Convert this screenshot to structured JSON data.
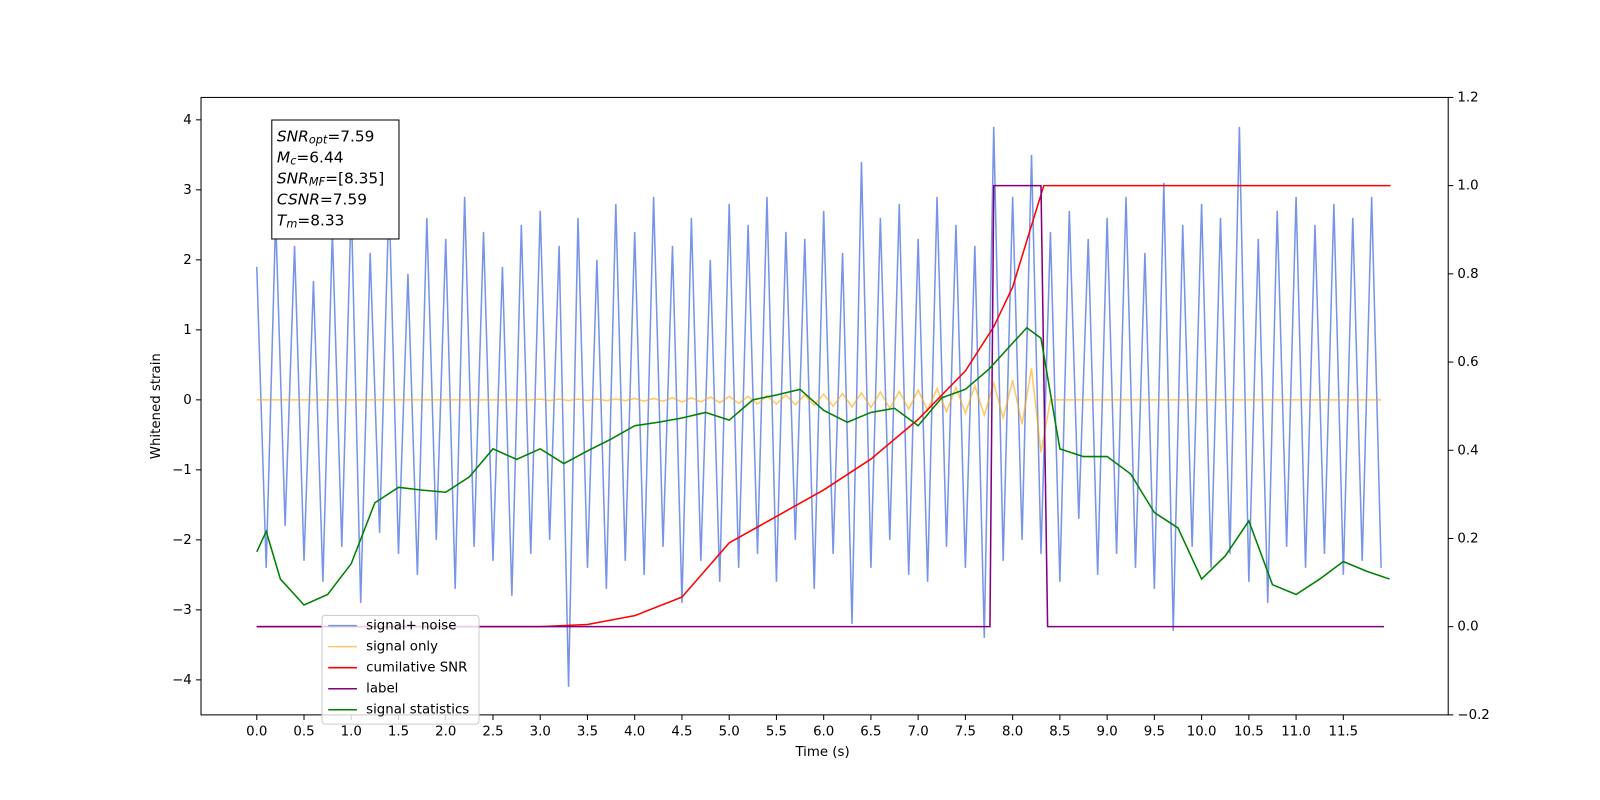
{
  "chart_data": {
    "type": "line",
    "xlabel": "Time (s)",
    "ylabel": "Whitened strain",
    "xlim": [
      -0.59,
      12.61
    ],
    "ylim": [
      -4.5,
      4.32
    ],
    "y2lim": [
      -0.2,
      1.2
    ],
    "xticks": [
      {
        "value": 0,
        "label": "0.0"
      },
      0.5,
      {
        "value": 1,
        "label": "1.0"
      },
      1.5,
      {
        "value": 2,
        "label": "2.0"
      },
      2.5,
      {
        "value": 3,
        "label": "3.0"
      },
      3.5,
      {
        "value": 4,
        "label": "4.0"
      },
      4.5,
      {
        "value": 5,
        "label": "5.0"
      },
      5.5,
      {
        "value": 6,
        "label": "6.0"
      },
      6.5,
      {
        "value": 7,
        "label": "7.0"
      },
      7.5,
      {
        "value": 8,
        "label": "8.0"
      },
      8.5,
      {
        "value": 9,
        "label": "9.0"
      },
      9.5,
      {
        "value": 10,
        "label": "10.0"
      },
      10.5,
      {
        "value": 11,
        "label": "11.0"
      },
      11.5
    ],
    "yticks": [
      {
        "value": -4,
        "label": "−4"
      },
      {
        "value": -3,
        "label": "−3"
      },
      {
        "value": -2,
        "label": "−2"
      },
      {
        "value": -1,
        "label": "−1"
      },
      0,
      1,
      2,
      3,
      4
    ],
    "y2ticks": [
      {
        "value": -0.2,
        "label": "−0.2"
      },
      {
        "value": 0,
        "label": "0.0"
      },
      0.2,
      0.4,
      0.6,
      0.8,
      {
        "value": 1,
        "label": "1.0"
      },
      1.2
    ],
    "legend": "lower left",
    "annotations": [
      {
        "main": "SNR",
        "sub": "opt",
        "rest": "=7.59"
      },
      {
        "main": "M",
        "sub": "c",
        "rest": "=6.44"
      },
      {
        "main": "SNR",
        "sub": "MF",
        "rest": "=[8.35]"
      },
      {
        "main": "CSNR",
        "rest": "=7.59"
      },
      {
        "main": "T",
        "sub": "m",
        "rest": "=8.33"
      }
    ],
    "x": [
      0.0,
      0.1,
      0.2,
      0.3,
      0.4,
      0.5,
      0.6,
      0.7,
      0.8,
      0.9,
      1.0,
      1.1,
      1.2,
      1.3,
      1.4,
      1.5,
      1.6,
      1.7,
      1.8,
      1.9,
      2.0,
      2.1,
      2.2,
      2.3,
      2.4,
      2.5,
      2.6,
      2.7,
      2.8,
      2.9,
      3.0,
      3.1,
      3.2,
      3.3,
      3.4,
      3.5,
      3.6,
      3.7,
      3.8,
      3.9,
      4.0,
      4.1,
      4.2,
      4.3,
      4.4,
      4.5,
      4.6,
      4.7,
      4.8,
      4.9,
      5.0,
      5.1,
      5.2,
      5.3,
      5.4,
      5.5,
      5.6,
      5.7,
      5.8,
      5.9,
      6.0,
      6.1,
      6.2,
      6.3,
      6.4,
      6.5,
      6.6,
      6.7,
      6.8,
      6.9,
      7.0,
      7.1,
      7.2,
      7.3,
      7.4,
      7.5,
      7.6,
      7.7,
      7.8,
      7.9,
      8.0,
      8.1,
      8.2,
      8.3,
      8.4,
      8.5,
      8.6,
      8.7,
      8.8,
      8.9,
      9.0,
      9.1,
      9.2,
      9.3,
      9.4,
      9.5,
      9.6,
      9.7,
      9.8,
      9.9,
      10.0,
      10.1,
      10.2,
      10.3,
      10.4,
      10.5,
      10.6,
      10.7,
      10.8,
      10.9,
      11.0,
      11.1,
      11.2,
      11.3,
      11.4,
      11.5,
      11.6,
      11.7,
      11.8,
      11.9
    ],
    "series": [
      {
        "name": "signal+ noise",
        "color": "#7894e8",
        "values": [
          1.9,
          -2.4,
          2.6,
          -1.8,
          2.2,
          -2.3,
          1.7,
          -2.6,
          2.4,
          -2.1,
          2.8,
          -2.9,
          2.1,
          -1.9,
          2.9,
          -2.2,
          1.8,
          -2.5,
          2.6,
          -2.0,
          2.3,
          -2.7,
          2.9,
          -2.1,
          2.4,
          -2.3,
          1.9,
          -2.8,
          2.5,
          -2.2,
          2.7,
          -2.0,
          2.2,
          -4.1,
          2.6,
          -2.4,
          2.0,
          -2.7,
          2.8,
          -2.3,
          2.4,
          -2.5,
          2.9,
          -2.1,
          2.2,
          -2.9,
          2.6,
          -2.3,
          2.0,
          -2.6,
          2.8,
          -2.4,
          2.5,
          -2.2,
          2.9,
          -2.6,
          2.4,
          -2.0,
          2.3,
          -2.7,
          2.7,
          -2.2,
          2.1,
          -3.2,
          3.4,
          -2.4,
          2.6,
          -2.0,
          2.8,
          -2.5,
          2.3,
          -2.6,
          2.9,
          -2.1,
          2.5,
          -2.4,
          2.2,
          -3.4,
          3.9,
          -2.3,
          2.9,
          -2.0,
          3.5,
          -2.2,
          2.4,
          -2.6,
          2.7,
          -1.7,
          2.3,
          -2.5,
          2.6,
          -2.2,
          2.9,
          -2.4,
          2.1,
          -2.7,
          3.1,
          -3.3,
          2.5,
          -2.1,
          2.8,
          -2.4,
          2.6,
          -2.2,
          3.9,
          -2.6,
          2.3,
          -2.9,
          2.7,
          -2.1,
          2.9,
          -2.4,
          2.5,
          -2.2,
          2.8,
          -2.5,
          2.6,
          -2.3,
          2.9,
          -2.4
        ]
      },
      {
        "name": "signal only",
        "color": "#ffa500",
        "values": [
          0,
          0,
          0,
          0,
          0,
          0,
          0,
          0,
          0,
          0,
          0,
          0,
          0,
          0,
          0,
          0,
          0,
          0,
          0,
          0,
          0,
          0,
          0,
          0,
          0,
          0,
          0,
          0,
          0,
          0,
          0.01,
          -0.01,
          0.01,
          -0.01,
          0.01,
          -0.01,
          0.01,
          -0.01,
          0.01,
          -0.01,
          0.02,
          -0.02,
          0.02,
          -0.02,
          0.03,
          -0.03,
          0.03,
          -0.03,
          0.04,
          -0.04,
          0.05,
          -0.05,
          0.05,
          -0.06,
          0.06,
          -0.06,
          0.07,
          -0.07,
          0.07,
          -0.08,
          0.08,
          -0.09,
          0.09,
          -0.1,
          0.1,
          -0.11,
          0.11,
          -0.12,
          0.12,
          -0.13,
          0.14,
          -0.15,
          0.16,
          -0.17,
          0.18,
          -0.19,
          0.2,
          -0.22,
          0.24,
          -0.26,
          0.28,
          -0.35,
          0.45,
          -0.75,
          0,
          0,
          0,
          0,
          0,
          0,
          0,
          0,
          0,
          0,
          0,
          0,
          0,
          0,
          0,
          0,
          0,
          0,
          0,
          0,
          0,
          0,
          0,
          0,
          0,
          0,
          0,
          0,
          0,
          0,
          0,
          0,
          0,
          0,
          0,
          0
        ]
      },
      {
        "name": "cumilative SNR",
        "color": "#ff0000",
        "axis": "y2",
        "x": [
          0,
          3.0,
          3.5,
          4.0,
          4.5,
          5.0,
          5.5,
          6.0,
          6.5,
          7.0,
          7.5,
          7.8,
          8.0,
          8.2,
          8.33,
          12.0
        ],
        "values": [
          0,
          0,
          0.005,
          0.025,
          0.067,
          0.19,
          0.25,
          0.31,
          0.38,
          0.47,
          0.58,
          0.68,
          0.77,
          0.91,
          1.0,
          1.0
        ]
      },
      {
        "name": "label",
        "color": "#800080",
        "axis": "y2",
        "x": [
          0,
          7.76,
          7.8,
          8.3,
          8.37,
          11.93
        ],
        "values": [
          0,
          0,
          1,
          1,
          0,
          0
        ]
      },
      {
        "name": "signal statistics",
        "color": "#008000",
        "x": [
          0,
          0.1,
          0.25,
          0.5,
          0.75,
          1.0,
          1.25,
          1.5,
          1.75,
          2.0,
          2.25,
          2.5,
          2.75,
          3.0,
          3.25,
          3.5,
          3.75,
          4.0,
          4.25,
          4.5,
          4.75,
          5.0,
          5.25,
          5.5,
          5.75,
          6.0,
          6.25,
          6.5,
          6.75,
          7.0,
          7.25,
          7.5,
          7.75,
          8.0,
          8.15,
          8.3,
          8.5,
          8.75,
          9.0,
          9.25,
          9.5,
          9.75,
          10.0,
          10.25,
          10.5,
          10.75,
          11.0,
          11.25,
          11.5,
          11.75,
          11.99
        ],
        "values": [
          -2.17,
          -1.88,
          -2.56,
          -2.93,
          -2.78,
          -2.34,
          -1.47,
          -1.25,
          -1.29,
          -1.32,
          -1.1,
          -0.7,
          -0.85,
          -0.7,
          -0.91,
          -0.73,
          -0.56,
          -0.37,
          -0.32,
          -0.26,
          -0.18,
          -0.29,
          0.0,
          0.07,
          0.15,
          -0.15,
          -0.32,
          -0.18,
          -0.12,
          -0.37,
          0.03,
          0.15,
          0.44,
          0.81,
          1.03,
          0.88,
          -0.7,
          -0.81,
          -0.81,
          -1.06,
          -1.61,
          -1.83,
          -2.56,
          -2.23,
          -1.73,
          -2.64,
          -2.78,
          -2.56,
          -2.31,
          -2.45,
          -2.56
        ]
      }
    ]
  }
}
